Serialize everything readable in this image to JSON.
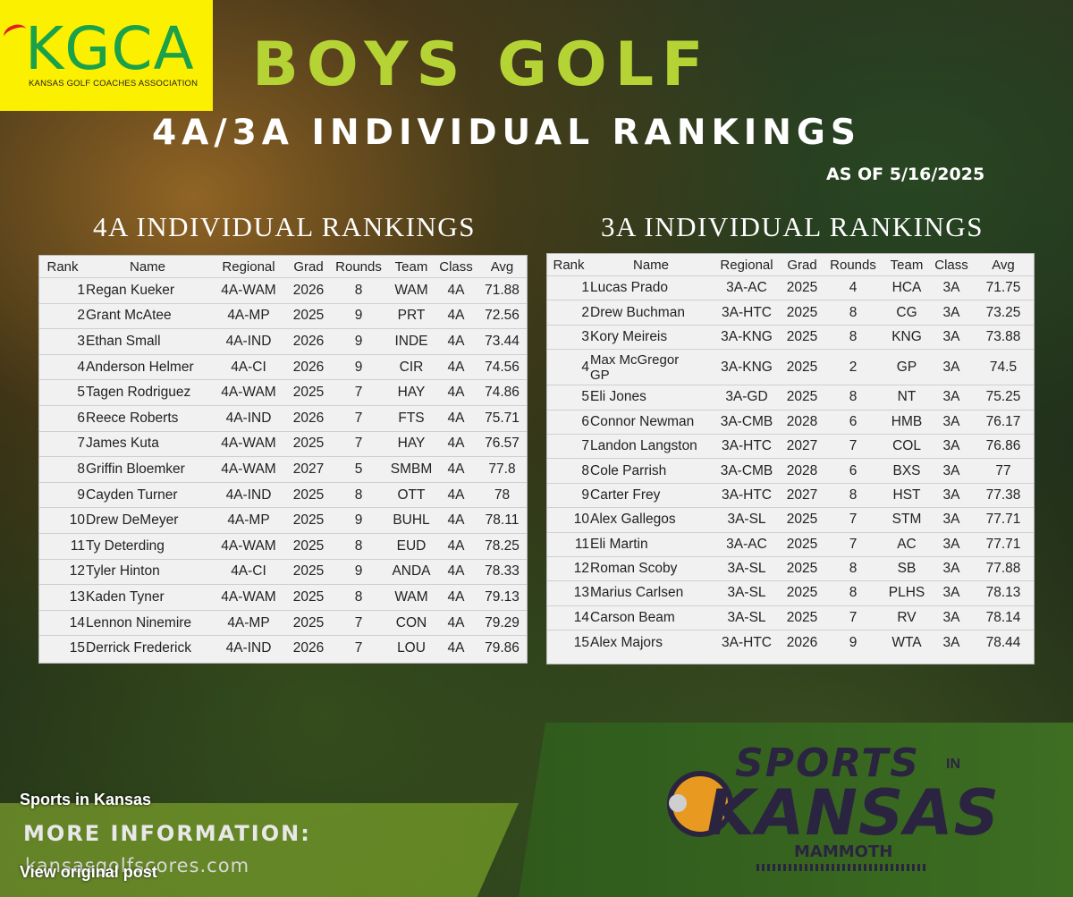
{
  "logo": {
    "text": "KGCA",
    "subtext": "KANSAS GOLF COACHES ASSOCIATION"
  },
  "header": {
    "title": "BOYS GOLF",
    "subtitle": "4A/3A INDIVIDUAL RANKINGS",
    "as_of": "AS OF 5/16/2025"
  },
  "table_4a": {
    "title": "4A INDIVIDUAL RANKINGS",
    "columns": [
      "Rank",
      "Name",
      "Regional",
      "Grad",
      "Rounds",
      "Team",
      "Class",
      "Avg"
    ],
    "rows": [
      {
        "rank": "1",
        "name": "Regan Kueker",
        "regional": "4A-WAM",
        "grad": "2026",
        "rounds": "8",
        "team": "WAM",
        "class": "4A",
        "avg": "71.88"
      },
      {
        "rank": "2",
        "name": "Grant McAtee",
        "regional": "4A-MP",
        "grad": "2025",
        "rounds": "9",
        "team": "PRT",
        "class": "4A",
        "avg": "72.56"
      },
      {
        "rank": "3",
        "name": "Ethan Small",
        "regional": "4A-IND",
        "grad": "2026",
        "rounds": "9",
        "team": "INDE",
        "class": "4A",
        "avg": "73.44"
      },
      {
        "rank": "4",
        "name": "Anderson Helmer",
        "regional": "4A-CI",
        "grad": "2026",
        "rounds": "9",
        "team": "CIR",
        "class": "4A",
        "avg": "74.56"
      },
      {
        "rank": "5",
        "name": "Tagen Rodriguez",
        "regional": "4A-WAM",
        "grad": "2025",
        "rounds": "7",
        "team": "HAY",
        "class": "4A",
        "avg": "74.86"
      },
      {
        "rank": "6",
        "name": "Reece Roberts",
        "regional": "4A-IND",
        "grad": "2026",
        "rounds": "7",
        "team": "FTS",
        "class": "4A",
        "avg": "75.71"
      },
      {
        "rank": "7",
        "name": "James Kuta",
        "regional": "4A-WAM",
        "grad": "2025",
        "rounds": "7",
        "team": "HAY",
        "class": "4A",
        "avg": "76.57"
      },
      {
        "rank": "8",
        "name": "Griffin Bloemker",
        "regional": "4A-WAM",
        "grad": "2027",
        "rounds": "5",
        "team": "SMBM",
        "class": "4A",
        "avg": "77.8"
      },
      {
        "rank": "9",
        "name": "Cayden Turner",
        "regional": "4A-IND",
        "grad": "2025",
        "rounds": "8",
        "team": "OTT",
        "class": "4A",
        "avg": "78"
      },
      {
        "rank": "10",
        "name": "Drew DeMeyer",
        "regional": "4A-MP",
        "grad": "2025",
        "rounds": "9",
        "team": "BUHL",
        "class": "4A",
        "avg": "78.11"
      },
      {
        "rank": "11",
        "name": "Ty Deterding",
        "regional": "4A-WAM",
        "grad": "2025",
        "rounds": "8",
        "team": "EUD",
        "class": "4A",
        "avg": "78.25"
      },
      {
        "rank": "12",
        "name": "Tyler Hinton",
        "regional": "4A-CI",
        "grad": "2025",
        "rounds": "9",
        "team": "ANDA",
        "class": "4A",
        "avg": "78.33"
      },
      {
        "rank": "13",
        "name": "Kaden Tyner",
        "regional": "4A-WAM",
        "grad": "2025",
        "rounds": "8",
        "team": "WAM",
        "class": "4A",
        "avg": "79.13"
      },
      {
        "rank": "14",
        "name": "Lennon Ninemire",
        "regional": "4A-MP",
        "grad": "2025",
        "rounds": "7",
        "team": "CON",
        "class": "4A",
        "avg": "79.29"
      },
      {
        "rank": "15",
        "name": "Derrick Frederick",
        "regional": "4A-IND",
        "grad": "2026",
        "rounds": "7",
        "team": "LOU",
        "class": "4A",
        "avg": "79.86"
      }
    ]
  },
  "table_3a": {
    "title": "3A INDIVIDUAL RANKINGS",
    "columns": [
      "Rank",
      "Name",
      "Regional",
      "Grad",
      "Rounds",
      "Team",
      "Class",
      "Avg"
    ],
    "rows": [
      {
        "rank": "1",
        "name": "Lucas Prado",
        "regional": "3A-AC",
        "grad": "2025",
        "rounds": "4",
        "team": "HCA",
        "class": "3A",
        "avg": "71.75"
      },
      {
        "rank": "2",
        "name": "Drew Buchman",
        "regional": "3A-HTC",
        "grad": "2025",
        "rounds": "8",
        "team": "CG",
        "class": "3A",
        "avg": "73.25"
      },
      {
        "rank": "3",
        "name": "Kory Meireis",
        "regional": "3A-KNG",
        "grad": "2025",
        "rounds": "8",
        "team": "KNG",
        "class": "3A",
        "avg": "73.88"
      },
      {
        "rank": "4",
        "name": "Max McGregor",
        "name_line2": "GP",
        "regional": "3A-KNG",
        "grad": "2025",
        "rounds": "2",
        "team": "GP",
        "class": "3A",
        "avg": "74.5"
      },
      {
        "rank": "5",
        "name": "Eli Jones",
        "regional": "3A-GD",
        "grad": "2025",
        "rounds": "8",
        "team": "NT",
        "class": "3A",
        "avg": "75.25"
      },
      {
        "rank": "6",
        "name": "Connor Newman",
        "regional": "3A-CMB",
        "grad": "2028",
        "rounds": "6",
        "team": "HMB",
        "class": "3A",
        "avg": "76.17"
      },
      {
        "rank": "7",
        "name": "Landon Langston",
        "regional": "3A-HTC",
        "grad": "2027",
        "rounds": "7",
        "team": "COL",
        "class": "3A",
        "avg": "76.86"
      },
      {
        "rank": "8",
        "name": "Cole Parrish",
        "regional": "3A-CMB",
        "grad": "2028",
        "rounds": "6",
        "team": "BXS",
        "class": "3A",
        "avg": "77"
      },
      {
        "rank": "9",
        "name": "Carter Frey",
        "regional": "3A-HTC",
        "grad": "2027",
        "rounds": "8",
        "team": "HST",
        "class": "3A",
        "avg": "77.38"
      },
      {
        "rank": "10",
        "name": "Alex Gallegos",
        "regional": "3A-SL",
        "grad": "2025",
        "rounds": "7",
        "team": "STM",
        "class": "3A",
        "avg": "77.71"
      },
      {
        "rank": "11",
        "name": "Eli Martin",
        "regional": "3A-AC",
        "grad": "2025",
        "rounds": "7",
        "team": "AC",
        "class": "3A",
        "avg": "77.71"
      },
      {
        "rank": "12",
        "name": "Roman Scoby",
        "regional": "3A-SL",
        "grad": "2025",
        "rounds": "8",
        "team": "SB",
        "class": "3A",
        "avg": "77.88"
      },
      {
        "rank": "13",
        "name": "Marius Carlsen",
        "regional": "3A-SL",
        "grad": "2025",
        "rounds": "8",
        "team": "PLHS",
        "class": "3A",
        "avg": "78.13"
      },
      {
        "rank": "14",
        "name": "Carson Beam",
        "regional": "3A-SL",
        "grad": "2025",
        "rounds": "7",
        "team": "RV",
        "class": "3A",
        "avg": "78.14"
      },
      {
        "rank": "15",
        "name": "Alex Majors",
        "regional": "3A-HTC",
        "grad": "2026",
        "rounds": "9",
        "team": "WTA",
        "class": "3A",
        "avg": "78.44"
      }
    ]
  },
  "footer": {
    "more_info": "MORE INFORMATION:",
    "website": "kansasgolfscores.com",
    "sponsor_top": "SPORTS",
    "sponsor_in": "IN",
    "sponsor_main": "KANSAS",
    "sponsor_sub": "MAMMOTH"
  },
  "post": {
    "source_name": "Sports in Kansas",
    "view_link": "View original post"
  }
}
